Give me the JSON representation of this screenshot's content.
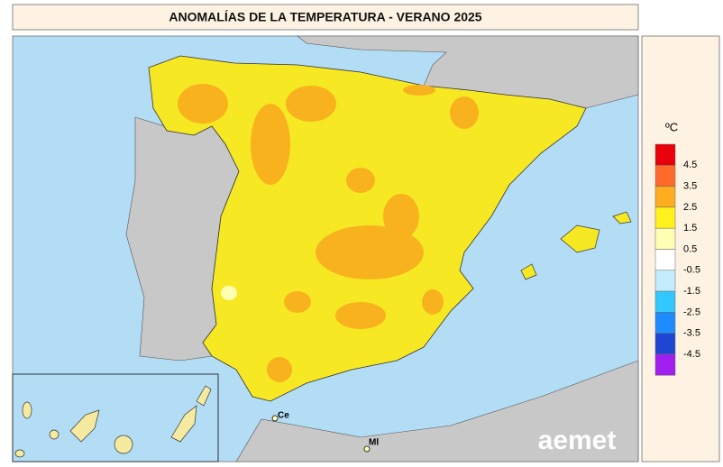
{
  "header": {
    "title": "ANOMALÍAS DE LA TEMPERATURA - VERANO 2025"
  },
  "legend": {
    "unit": "ºC",
    "labels": [
      4.5,
      3.5,
      2.5,
      1.5,
      0.5,
      -0.5,
      -1.5,
      -2.5,
      -3.5,
      -4.5
    ],
    "colors": [
      "#e8000b",
      "#ff6a2a",
      "#ffad1e",
      "#fff01e",
      "#ffffb4",
      "#ffffff",
      "#c3ecff",
      "#32c8ff",
      "#1e8cff",
      "#1e46d2",
      "#a01ef0"
    ]
  },
  "map": {
    "labels": [
      "Ce",
      "Ml"
    ],
    "logo": "aemet"
  }
}
